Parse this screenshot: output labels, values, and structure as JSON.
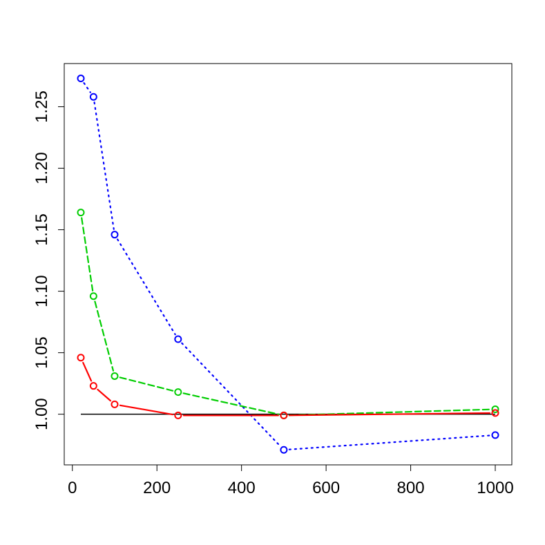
{
  "chart_data": {
    "type": "line",
    "title": "",
    "xlabel": "",
    "ylabel": "",
    "x": [
      20,
      50,
      100,
      250,
      500,
      1000
    ],
    "xlim": [
      -19.2,
      1039.2
    ],
    "ylim": [
      0.9588,
      1.2851
    ],
    "xticks": [
      0,
      200,
      400,
      600,
      800,
      1000
    ],
    "xtick_labels": [
      "0",
      "200",
      "400",
      "600",
      "800",
      "1000"
    ],
    "yticks": [
      1.0,
      1.05,
      1.1,
      1.15,
      1.2,
      1.25
    ],
    "ytick_labels": [
      "1.00",
      "1.05",
      "1.10",
      "1.15",
      "1.20",
      "1.25"
    ],
    "grid": false,
    "reference_line": {
      "y": 1.0,
      "x_from": 20,
      "x_to": 1000,
      "color": "#000000"
    },
    "series": [
      {
        "color": "#0000FF",
        "line_style": "dotted",
        "marker": "open-circle",
        "values": [
          1.273,
          1.258,
          1.146,
          1.061,
          0.971,
          0.983
        ]
      },
      {
        "color": "#00CD00",
        "line_style": "dashed",
        "marker": "open-circle",
        "values": [
          1.164,
          1.096,
          1.031,
          1.018,
          0.999,
          1.004
        ]
      },
      {
        "color": "#FF0000",
        "line_style": "solid",
        "marker": "open-circle",
        "values": [
          1.046,
          1.023,
          1.008,
          0.999,
          0.999,
          1.001
        ]
      }
    ]
  }
}
